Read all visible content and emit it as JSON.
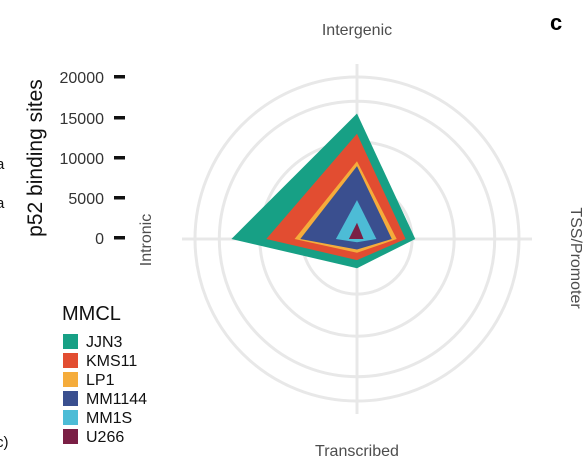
{
  "chart_data": {
    "type": "radar",
    "panel_letter": "c",
    "ylabel": "p52 binding sites",
    "axes": [
      "Intergenic",
      "TSS/Promoter",
      "Transcribed",
      "Intronic"
    ],
    "yticks": [
      20000,
      15000,
      10000,
      5000,
      0
    ],
    "rmax": 20000,
    "legend_title": "MMCL",
    "series": [
      {
        "name": "JJN3",
        "color": "#17a085",
        "values": {
          "Intergenic": 15500,
          "TSS/Promoter": 7200,
          "Transcribed": 3600,
          "Intronic": 15500
        }
      },
      {
        "name": "KMS11",
        "color": "#e24d31",
        "values": {
          "Intergenic": 13000,
          "TSS/Promoter": 6000,
          "Transcribed": 2600,
          "Intronic": 11200
        }
      },
      {
        "name": "LP1",
        "color": "#f5ac3b",
        "values": {
          "Intergenic": 9600,
          "TSS/Promoter": 4900,
          "Transcribed": 1700,
          "Intronic": 7700
        }
      },
      {
        "name": "MM1144",
        "color": "#3a4f8f",
        "values": {
          "Intergenic": 9000,
          "TSS/Promoter": 4300,
          "Transcribed": 1300,
          "Intronic": 7000
        }
      },
      {
        "name": "MM1S",
        "color": "#4dbcd6",
        "values": {
          "Intergenic": 4800,
          "TSS/Promoter": 2400,
          "Transcribed": 400,
          "Intronic": 2600
        }
      },
      {
        "name": "U266",
        "color": "#7a1f45",
        "values": {
          "Intergenic": 2000,
          "TSS/Promoter": 800,
          "Transcribed": 0,
          "Intronic": 1000
        }
      }
    ]
  },
  "left_edge_fragments": [
    "a",
    "a",
    "c)"
  ]
}
